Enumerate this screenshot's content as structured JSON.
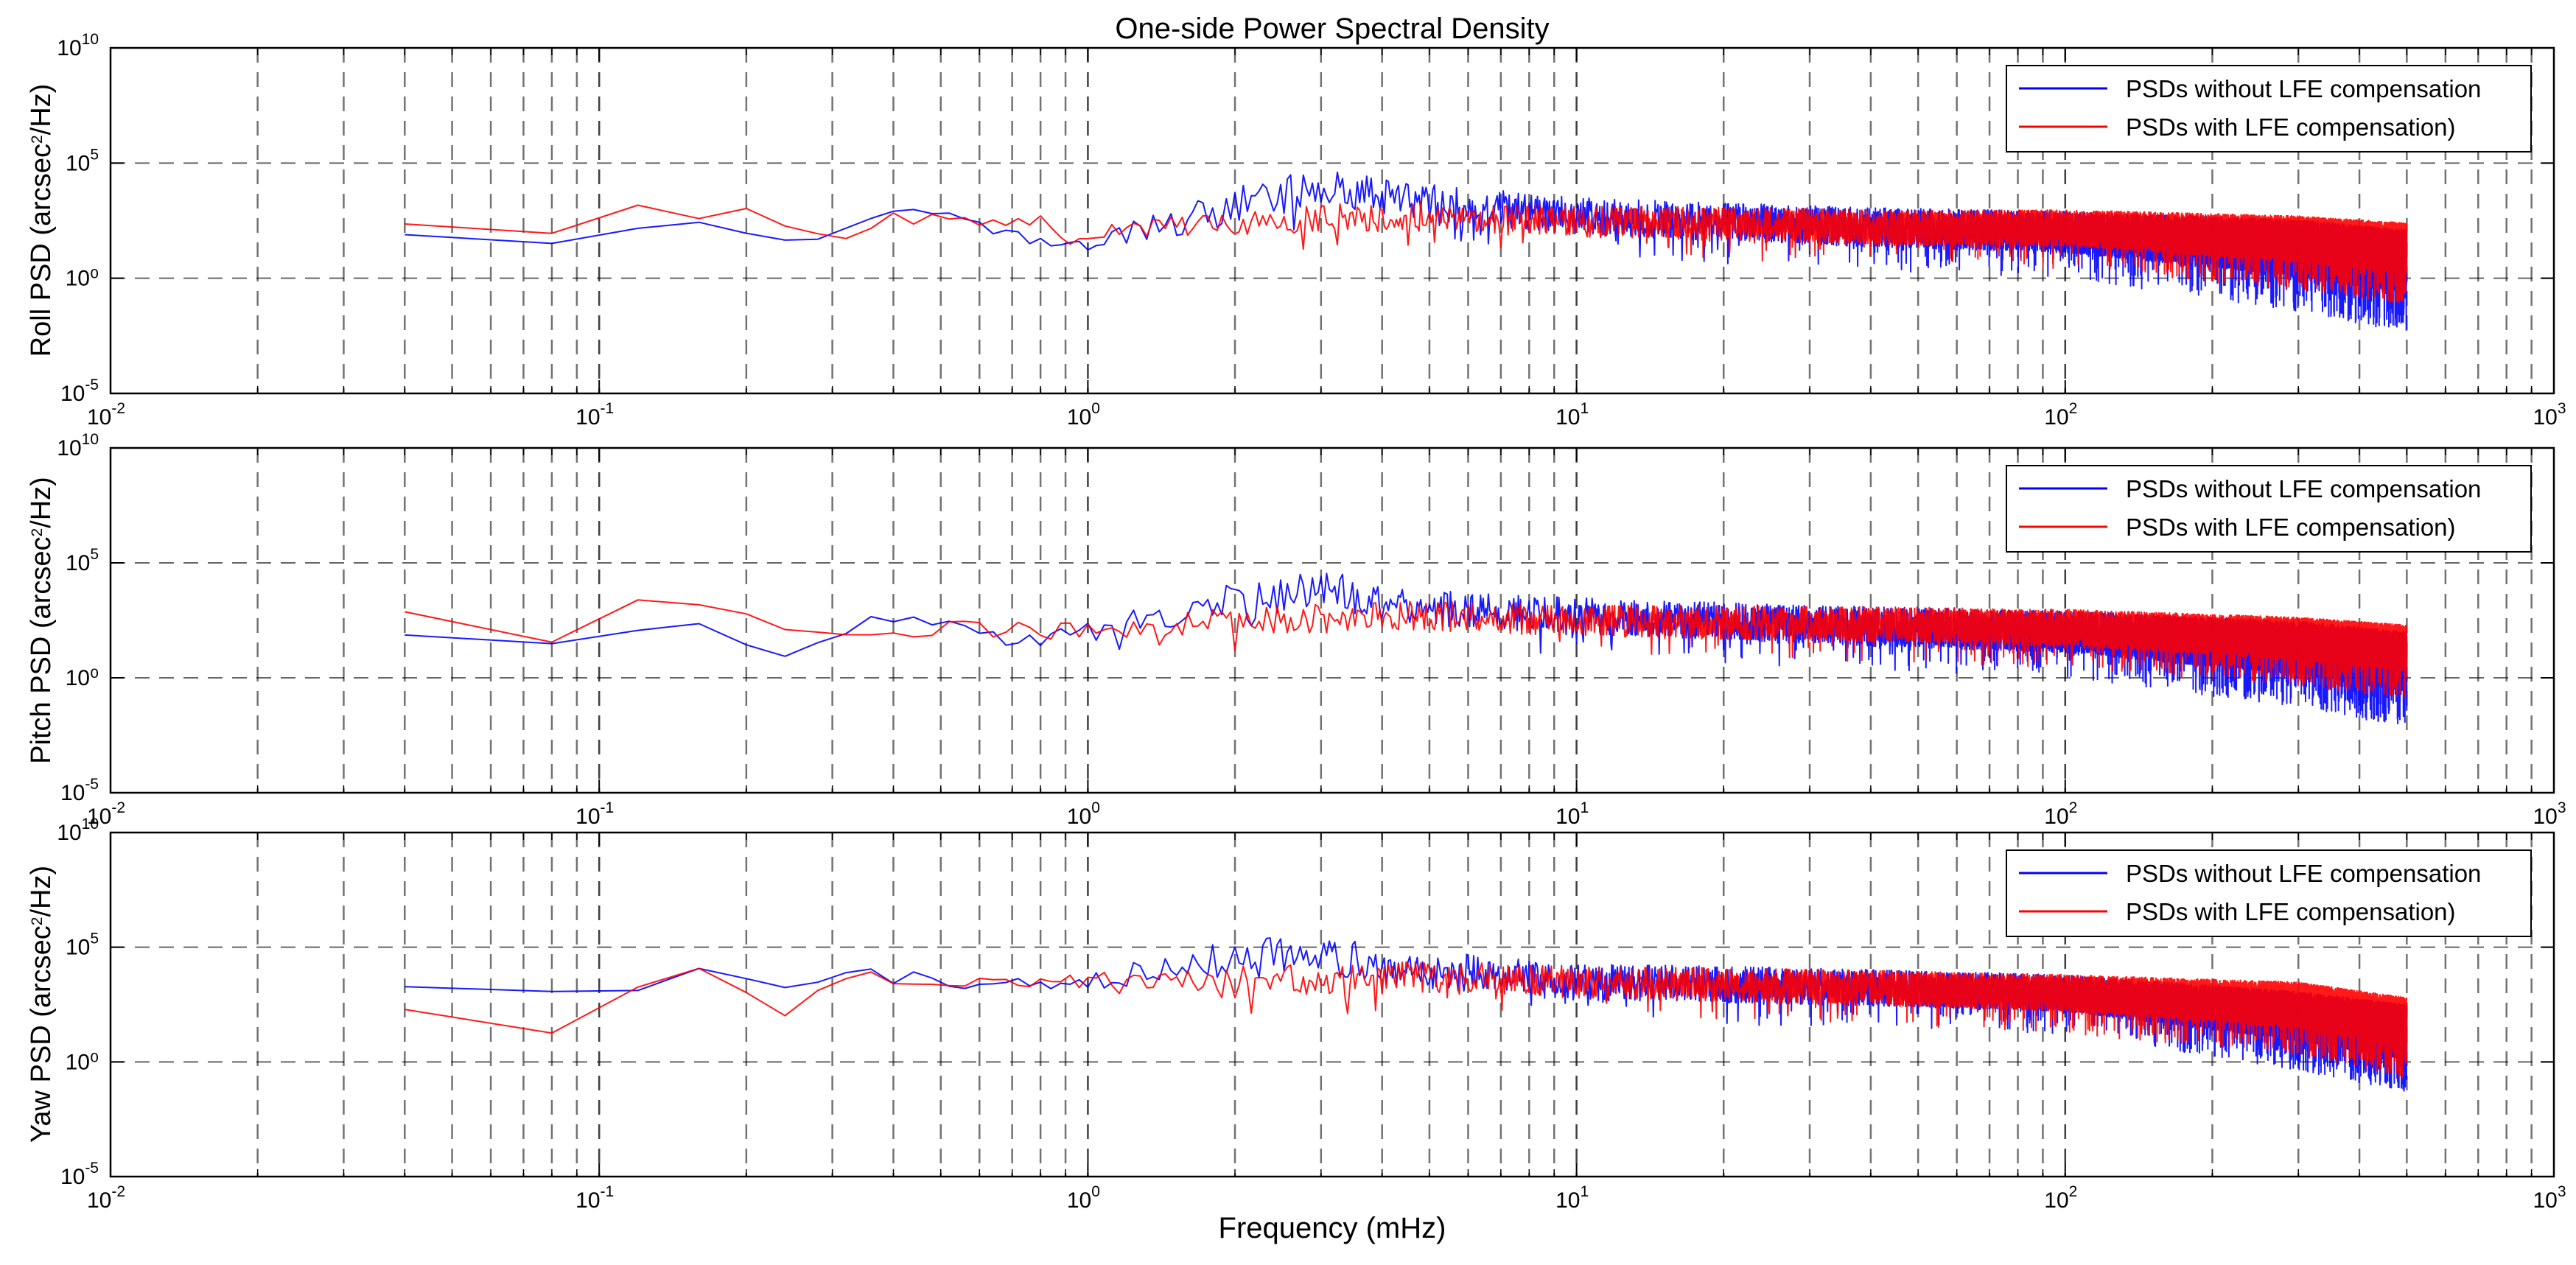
{
  "colors": {
    "without": "#0000ff",
    "with": "#ff0000",
    "grid": "#000000",
    "background": "#ffffff"
  },
  "chart_data": {
    "title": "One-side Power Spectral Density",
    "xlabel": "Frequency (mHz)",
    "type": "line",
    "xscale": "log",
    "yscale": "log",
    "xlim": [
      0.01,
      1000
    ],
    "ylim": [
      1e-05,
      10000000000
    ],
    "x_tick_labels": [
      {
        "base": "10",
        "exp": "-2"
      },
      {
        "base": "10",
        "exp": "-1"
      },
      {
        "base": "10",
        "exp": "0"
      },
      {
        "base": "10",
        "exp": "1"
      },
      {
        "base": "10",
        "exp": "2"
      },
      {
        "base": "10",
        "exp": "3"
      }
    ],
    "y_tick_labels": [
      {
        "base": "10",
        "exp": "-5"
      },
      {
        "base": "10",
        "exp": "0",
        "plain": "10⁰"
      },
      {
        "base": "10",
        "exp": "5"
      },
      {
        "base": "10",
        "exp": "10"
      }
    ],
    "grid": true,
    "frequency_range_mHz": [
      0.04,
      500
    ],
    "panels": [
      {
        "ylabel_pre": "Roll PSD (arcsec",
        "ylabel_sup": "2",
        "ylabel_post": "/Hz)",
        "legend": [
          "PSDs without LFE compensation",
          "PSDs with LFE compensation)"
        ],
        "legend_position": "top-right",
        "series": [
          {
            "name": "PSDs without LFE compensation",
            "anchors": [
              [
                0.04,
                70
              ],
              [
                0.08,
                40
              ],
              [
                0.12,
                200
              ],
              [
                0.16,
                250
              ],
              [
                0.25,
                40
              ],
              [
                0.3,
                40
              ],
              [
                0.35,
                300
              ],
              [
                0.5,
                1000
              ],
              [
                0.7,
                60
              ],
              [
                1.0,
                30
              ],
              [
                2.0,
                1500
              ],
              [
                3.0,
                10000
              ],
              [
                5.0,
                2000
              ],
              [
                10.0,
                500
              ],
              [
                30.0,
                200
              ],
              [
                100.0,
                100
              ],
              [
                300.0,
                20
              ],
              [
                500.0,
                5
              ]
            ],
            "spread": [
              [
                0.04,
                0.15
              ],
              [
                1.0,
                0.3
              ],
              [
                2.0,
                0.9
              ],
              [
                5.0,
                0.8
              ],
              [
                10.0,
                0.8
              ],
              [
                100.0,
                0.9
              ],
              [
                500.0,
                1.4
              ]
            ]
          },
          {
            "name": "PSDs with LFE compensation)",
            "anchors": [
              [
                0.04,
                200
              ],
              [
                0.08,
                60
              ],
              [
                0.12,
                1500
              ],
              [
                0.16,
                300
              ],
              [
                0.2,
                1000
              ],
              [
                0.3,
                30
              ],
              [
                0.4,
                400
              ],
              [
                0.8,
                350
              ],
              [
                0.9,
                50
              ],
              [
                1.0,
                100
              ],
              [
                2.0,
                300
              ],
              [
                5.0,
                500
              ],
              [
                10.0,
                300
              ],
              [
                50.0,
                150
              ],
              [
                100.0,
                150
              ],
              [
                300.0,
                50
              ],
              [
                500.0,
                20
              ]
            ],
            "spread": [
              [
                0.04,
                0.15
              ],
              [
                1.0,
                0.3
              ],
              [
                2.0,
                0.6
              ],
              [
                10.0,
                0.7
              ],
              [
                100.0,
                0.8
              ],
              [
                500.0,
                1.1
              ]
            ]
          }
        ]
      },
      {
        "ylabel_pre": "Pitch PSD (arcsec",
        "ylabel_sup": "2",
        "ylabel_post": "/Hz)",
        "legend": [
          "PSDs without LFE compensation",
          "PSDs with LFE compensation)"
        ],
        "legend_position": "top-right",
        "series": [
          {
            "name": "PSDs without LFE compensation",
            "anchors": [
              [
                0.04,
                100
              ],
              [
                0.08,
                20
              ],
              [
                0.12,
                100
              ],
              [
                0.16,
                200
              ],
              [
                0.25,
                10
              ],
              [
                0.35,
                300
              ],
              [
                0.5,
                200
              ],
              [
                0.7,
                40
              ],
              [
                1.0,
                100
              ],
              [
                2.0,
                2000
              ],
              [
                3.0,
                8000
              ],
              [
                5.0,
                1000
              ],
              [
                10.0,
                500
              ],
              [
                30.0,
                200
              ],
              [
                100.0,
                100
              ],
              [
                300.0,
                20
              ],
              [
                500.0,
                5
              ]
            ],
            "spread": [
              [
                0.04,
                0.15
              ],
              [
                1.0,
                0.4
              ],
              [
                2.0,
                0.9
              ],
              [
                5.0,
                0.8
              ],
              [
                10.0,
                0.8
              ],
              [
                100.0,
                0.9
              ],
              [
                500.0,
                1.3
              ]
            ]
          },
          {
            "name": "PSDs with LFE compensation)",
            "anchors": [
              [
                0.04,
                1000
              ],
              [
                0.08,
                30
              ],
              [
                0.12,
                1500
              ],
              [
                0.2,
                800
              ],
              [
                0.3,
                40
              ],
              [
                0.5,
                150
              ],
              [
                1.0,
                100
              ],
              [
                2.0,
                300
              ],
              [
                5.0,
                500
              ],
              [
                10.0,
                300
              ],
              [
                50.0,
                200
              ],
              [
                100.0,
                150
              ],
              [
                300.0,
                50
              ],
              [
                500.0,
                20
              ]
            ],
            "spread": [
              [
                0.04,
                0.15
              ],
              [
                1.0,
                0.4
              ],
              [
                2.0,
                0.6
              ],
              [
                10.0,
                0.7
              ],
              [
                100.0,
                0.8
              ],
              [
                500.0,
                1.0
              ]
            ]
          }
        ]
      },
      {
        "ylabel_pre": "Yaw PSD (arcsec",
        "ylabel_sup": "2",
        "ylabel_post": "/Hz)",
        "legend": [
          "PSDs without LFE compensation",
          "PSDs with LFE compensation)"
        ],
        "legend_position": "top-right",
        "series": [
          {
            "name": "PSDs without LFE compensation",
            "anchors": [
              [
                0.04,
                2000
              ],
              [
                0.08,
                1000
              ],
              [
                0.12,
                2000
              ],
              [
                0.16,
                10000
              ],
              [
                0.25,
                800
              ],
              [
                0.3,
                8000
              ],
              [
                0.5,
                3000
              ],
              [
                1.0,
                3000
              ],
              [
                2.0,
                30000
              ],
              [
                3.0,
                40000
              ],
              [
                5.0,
                10000
              ],
              [
                10.0,
                3000
              ],
              [
                30.0,
                2000
              ],
              [
                100.0,
                1000
              ],
              [
                300.0,
                100
              ],
              [
                500.0,
                20
              ]
            ],
            "spread": [
              [
                0.04,
                0.15
              ],
              [
                1.0,
                0.4
              ],
              [
                2.0,
                0.9
              ],
              [
                10.0,
                0.8
              ],
              [
                100.0,
                0.8
              ],
              [
                500.0,
                1.2
              ]
            ]
          },
          {
            "name": "PSDs with LFE compensation)",
            "anchors": [
              [
                0.04,
                200
              ],
              [
                0.08,
                20
              ],
              [
                0.12,
                2000
              ],
              [
                0.16,
                8000
              ],
              [
                0.25,
                40
              ],
              [
                0.3,
                8000
              ],
              [
                0.5,
                3000
              ],
              [
                1.0,
                3000
              ],
              [
                2.0,
                3000
              ],
              [
                5.0,
                5000
              ],
              [
                10.0,
                3000
              ],
              [
                30.0,
                2000
              ],
              [
                100.0,
                1000
              ],
              [
                300.0,
                300
              ],
              [
                500.0,
                50
              ]
            ],
            "spread": [
              [
                0.04,
                0.15
              ],
              [
                1.0,
                0.4
              ],
              [
                2.0,
                0.7
              ],
              [
                10.0,
                0.7
              ],
              [
                100.0,
                0.8
              ],
              [
                500.0,
                1.1
              ]
            ]
          }
        ]
      }
    ]
  }
}
